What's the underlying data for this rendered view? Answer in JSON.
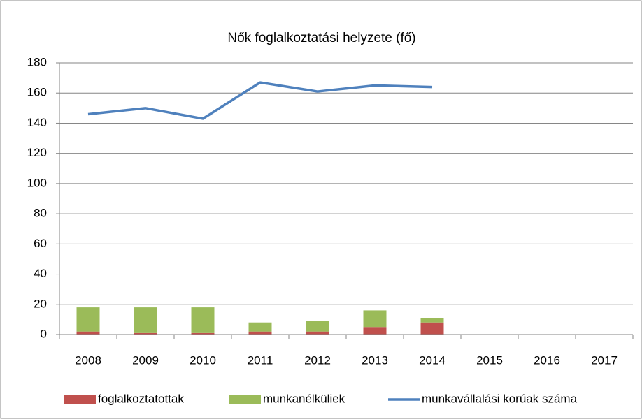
{
  "chart_data": {
    "type": "bar-line",
    "title": "Nők foglalkoztatási helyzete (fő)",
    "categories": [
      "2008",
      "2009",
      "2010",
      "2011",
      "2012",
      "2013",
      "2014",
      "2015",
      "2016",
      "2017"
    ],
    "series": [
      {
        "name": "foglalkoztatottak",
        "type": "bar",
        "color": "#c0504d",
        "values": [
          2,
          1,
          1,
          2,
          2,
          5,
          8,
          null,
          null,
          null
        ]
      },
      {
        "name": "munkanélküliek",
        "type": "bar",
        "color": "#9bbb59",
        "values": [
          16,
          17,
          17,
          6,
          7,
          11,
          3,
          null,
          null,
          null
        ]
      },
      {
        "name": "munkavállalási korúak száma",
        "type": "line",
        "color": "#4f81bd",
        "values": [
          146,
          150,
          143,
          167,
          161,
          165,
          164,
          null,
          null,
          null
        ]
      }
    ],
    "stacked": true,
    "ylim": [
      0,
      180
    ],
    "yticks": [
      0,
      20,
      40,
      60,
      80,
      100,
      120,
      140,
      160,
      180
    ],
    "grid": true,
    "legend": "bottom"
  }
}
